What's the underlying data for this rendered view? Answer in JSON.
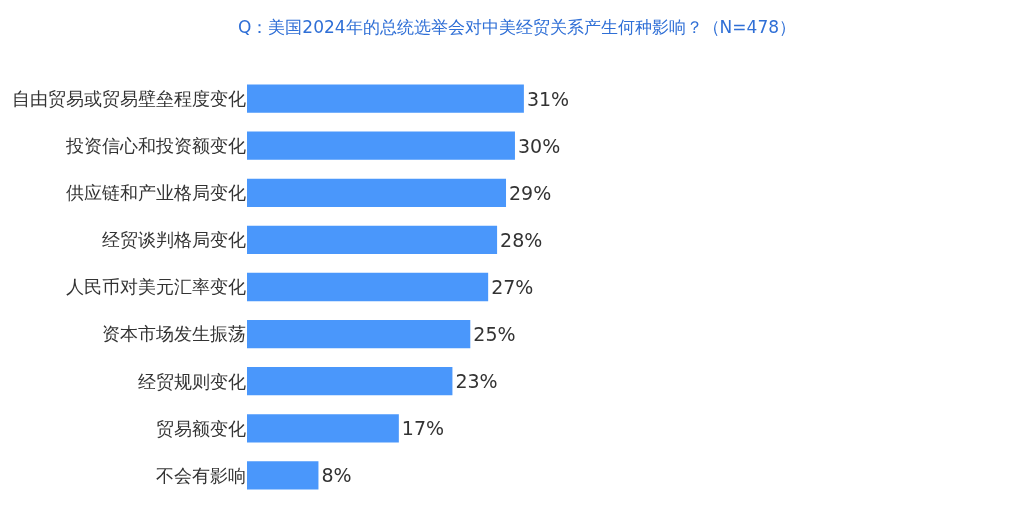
{
  "chart_data": {
    "type": "bar",
    "orientation": "horizontal",
    "title": "Q：美国2024年的总统选举会对中美经贸关系产生何种影响？（N=478）",
    "categories": [
      "自由贸易或贸易壁垒程度变化",
      "投资信心和投资额变化",
      "供应链和产业格局变化",
      "经贸谈判格局变化",
      "人民币对美元汇率变化",
      "资本市场发生振荡",
      "经贸规则变化",
      "贸易额变化",
      "不会有影响"
    ],
    "values": [
      31,
      30,
      29,
      28,
      27,
      25,
      23,
      17,
      8
    ],
    "value_labels": [
      "31%",
      "30%",
      "29%",
      "28%",
      "27%",
      "25%",
      "23%",
      "17%",
      "8%"
    ],
    "color": "#4a97fb",
    "tick_labels": "y"
  }
}
